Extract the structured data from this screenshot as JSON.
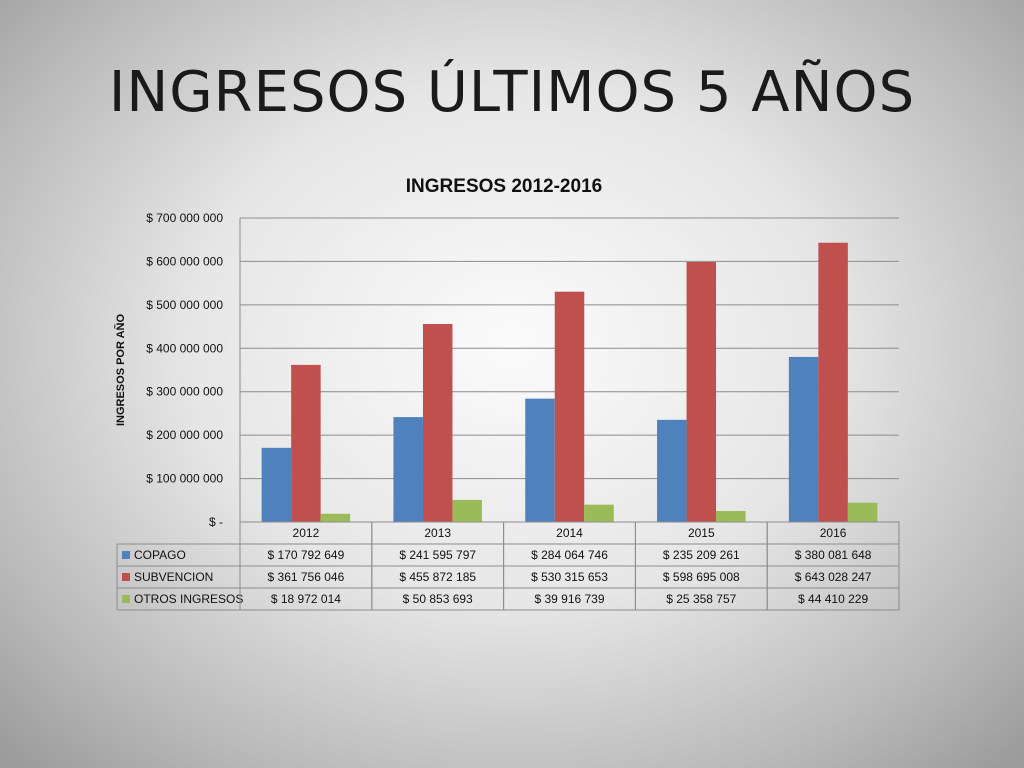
{
  "slide_title": "INGRESOS ÚLTIMOS 5 AÑOS",
  "colors": {
    "COPAGO": "#4f81bd",
    "SUBVENCION": "#c0504d",
    "OTROS INGRESOS": "#9bbb59"
  },
  "chart_data": {
    "type": "bar",
    "title": "INGRESOS 2012-2016",
    "xlabel": "",
    "ylabel": "INGRESOS POR AÑO",
    "categories": [
      "2012",
      "2013",
      "2014",
      "2015",
      "2016"
    ],
    "ylim": [
      0,
      700000000
    ],
    "ytick_values": [
      0,
      100000000,
      200000000,
      300000000,
      400000000,
      500000000,
      600000000,
      700000000
    ],
    "ytick_labels": [
      "$ -",
      "$ 100 000 000",
      "$ 200 000 000",
      "$ 300 000 000",
      "$ 400 000 000",
      "$ 500 000 000",
      "$ 600 000 000",
      "$ 700 000 000"
    ],
    "grid": true,
    "legend": "data-table",
    "series": [
      {
        "name": "COPAGO",
        "values": [
          170792649,
          241595797,
          284064746,
          235209261,
          380081648
        ],
        "labels": [
          "$ 170 792 649",
          "$ 241 595 797",
          "$ 284 064 746",
          "$ 235 209 261",
          "$ 380 081 648"
        ]
      },
      {
        "name": "SUBVENCION",
        "values": [
          361756046,
          455872185,
          530315653,
          598695008,
          643028247
        ],
        "labels": [
          "$ 361 756 046",
          "$ 455 872 185",
          "$ 530 315 653",
          "$ 598 695 008",
          "$ 643 028 247"
        ]
      },
      {
        "name": "OTROS INGRESOS",
        "values": [
          18972014,
          50853693,
          39916739,
          25358757,
          44410229
        ],
        "labels": [
          "$ 18 972 014",
          "$ 50 853 693",
          "$ 39 916 739",
          "$ 25 358 757",
          "$ 44 410 229"
        ]
      }
    ]
  }
}
